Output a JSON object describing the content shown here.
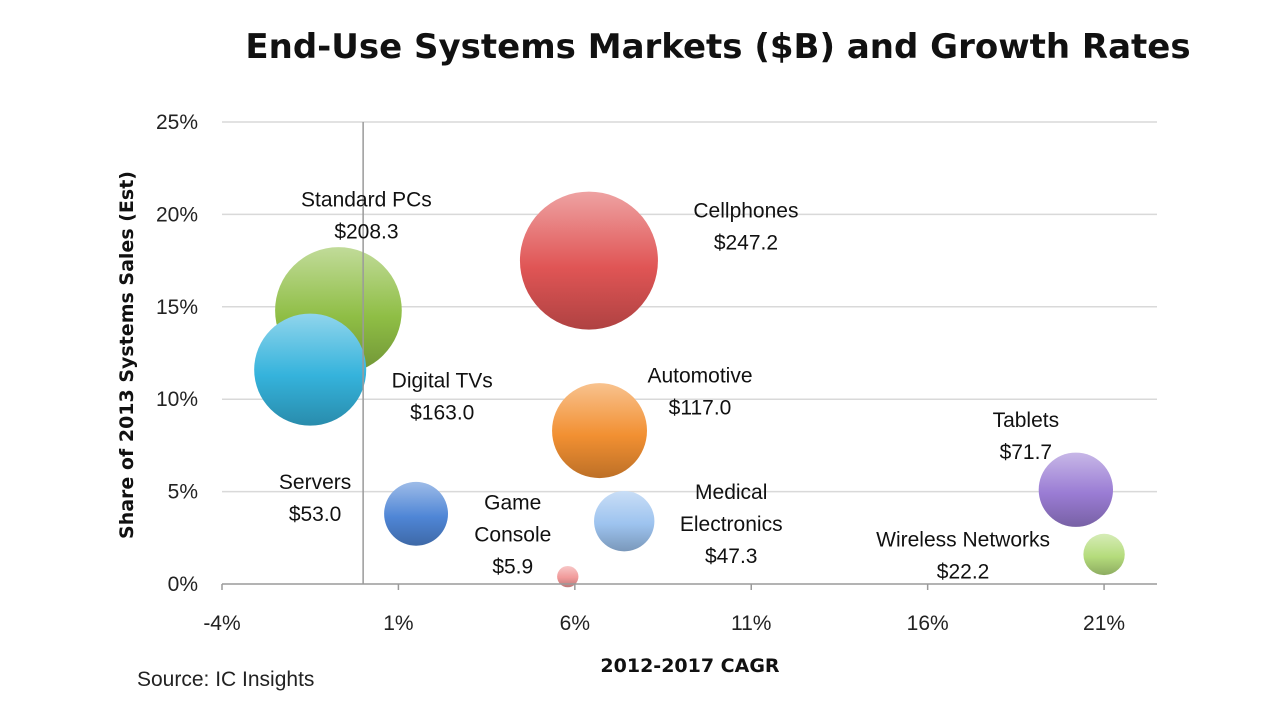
{
  "chart_data": {
    "type": "bubble",
    "title": "End-Use Systems Markets ($B) and Growth Rates",
    "xlabel": "2012-2017 CAGR",
    "ylabel": "Share of 2013 Systems Sales (Est)",
    "source": "Source: IC Insights",
    "x_unit": "%",
    "y_unit": "%",
    "xlim": [
      -4,
      22.5
    ],
    "ylim": [
      0,
      25
    ],
    "x_ticks": [
      -4,
      1,
      6,
      11,
      16,
      21
    ],
    "y_ticks": [
      0,
      5,
      10,
      15,
      20,
      25
    ],
    "x_tick_labels": [
      "-4%",
      "1%",
      "6%",
      "11%",
      "16%",
      "21%"
    ],
    "y_tick_labels": [
      "0%",
      "5%",
      "10%",
      "15%",
      "20%",
      "25%"
    ],
    "reference_x": 0,
    "grid": "horizontal",
    "size_unit": "$B",
    "points": [
      {
        "name": "Standard PCs",
        "value_label": "$208.3",
        "x": -0.7,
        "y": 14.8,
        "size": 208.3,
        "color": "#8fbe45",
        "label_anchor": "top"
      },
      {
        "name": "Digital TVs",
        "value_label": "$163.0",
        "x": -1.5,
        "y": 11.6,
        "size": 163.0,
        "color": "#35b3dc",
        "label_anchor": "right-below"
      },
      {
        "name": "Cellphones",
        "value_label": "$247.2",
        "x": 6.4,
        "y": 17.5,
        "size": 247.2,
        "color": "#e05555",
        "label_anchor": "right"
      },
      {
        "name": "Automotive",
        "value_label": "$117.0",
        "x": 6.7,
        "y": 8.3,
        "size": 117.0,
        "color": "#f29032",
        "label_anchor": "top-right"
      },
      {
        "name": "Servers",
        "value_label": "$53.0",
        "x": 1.5,
        "y": 3.8,
        "size": 53.0,
        "color": "#4f86d6",
        "label_anchor": "left"
      },
      {
        "name": "Game Console",
        "value_label": "$5.9",
        "x": 5.8,
        "y": 0.4,
        "size": 5.9,
        "color": "#f19a9a",
        "label_anchor": "top-left"
      },
      {
        "name": "Medical Electronics",
        "value_label": "$47.3",
        "x": 7.4,
        "y": 3.4,
        "size": 47.3,
        "color": "#9dc3ef",
        "label_anchor": "right"
      },
      {
        "name": "Tablets",
        "value_label": "$71.7",
        "x": 20.2,
        "y": 5.1,
        "size": 71.7,
        "color": "#9a7cd4",
        "label_anchor": "top-left"
      },
      {
        "name": "Wireless Networks",
        "value_label": "$22.2",
        "x": 21.0,
        "y": 1.6,
        "size": 22.2,
        "color": "#b5dc7c",
        "label_anchor": "left"
      }
    ]
  }
}
